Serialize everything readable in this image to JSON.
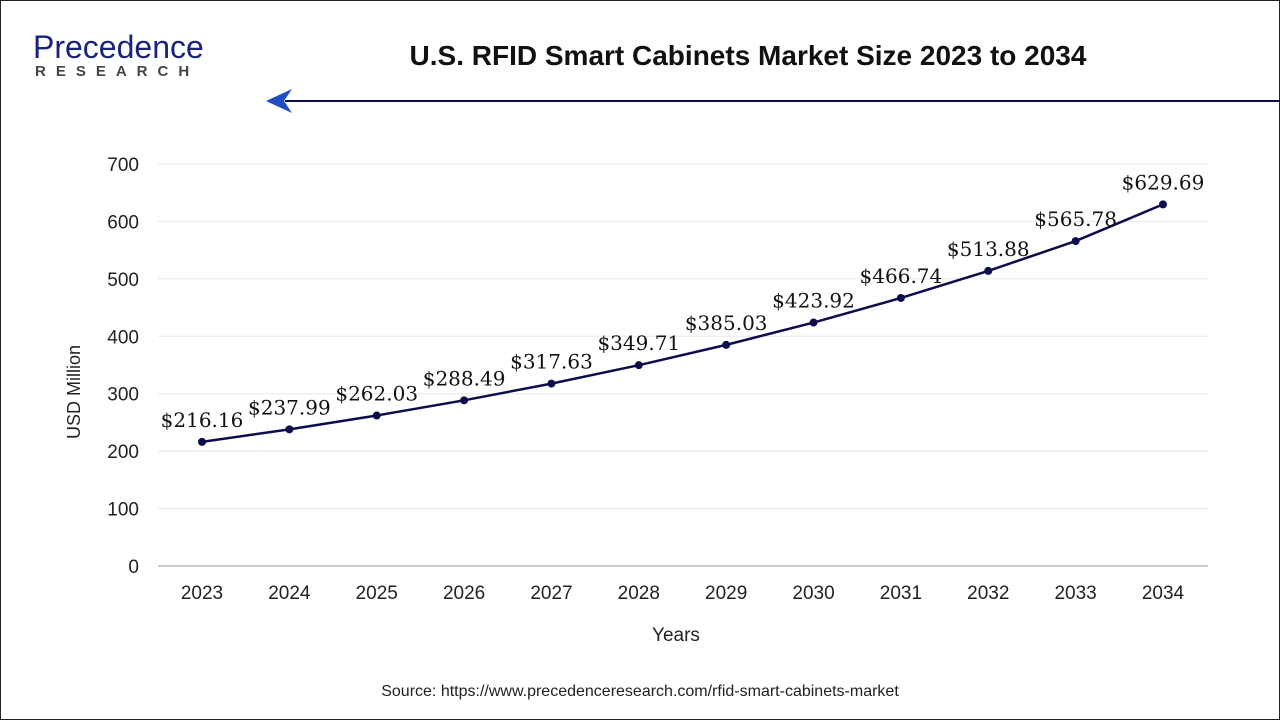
{
  "logo": {
    "line1": "Precedence",
    "line2": "RESEARCH"
  },
  "header": {
    "title": "U.S. RFID Smart Cabinets Market Size 2023 to 2034"
  },
  "source": "Source: https://www.precedenceresearch.com/rfid-smart-cabinets-market",
  "colors": {
    "line": "#0d0d4d",
    "arrow": "#0d0d4d",
    "arrowhead": "#1f4fbf",
    "grid": "#e8e8e8"
  },
  "chart_data": {
    "type": "line",
    "title": "U.S. RFID Smart Cabinets Market Size 2023 to 2034",
    "xlabel": "Years",
    "ylabel": "USD Million",
    "ylim": [
      0,
      700
    ],
    "yticks": [
      0,
      100,
      200,
      300,
      400,
      500,
      600,
      700
    ],
    "grid": "horizontal",
    "categories": [
      "2023",
      "2024",
      "2025",
      "2026",
      "2027",
      "2028",
      "2029",
      "2030",
      "2031",
      "2032",
      "2033",
      "2034"
    ],
    "values": [
      216.16,
      237.99,
      262.03,
      288.49,
      317.63,
      349.71,
      385.03,
      423.92,
      466.74,
      513.88,
      565.78,
      629.69
    ],
    "data_labels": [
      "$216.16",
      "$237.99",
      "$262.03",
      "$288.49",
      "$317.63",
      "$349.71",
      "$385.03",
      "$423.92",
      "$466.74",
      "$513.88",
      "$565.78",
      "$629.69"
    ]
  }
}
